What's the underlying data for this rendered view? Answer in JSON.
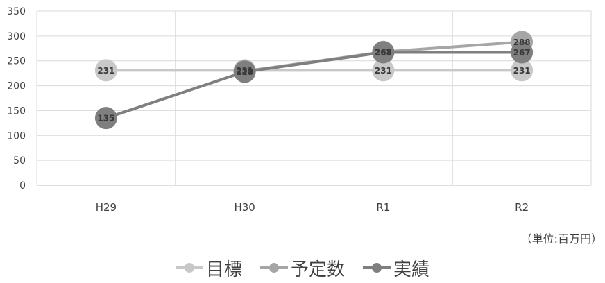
{
  "chart_data": {
    "type": "line",
    "categories": [
      "H29",
      "H30",
      "R1",
      "R2"
    ],
    "ylim": [
      0,
      350
    ],
    "yticks": [
      0,
      50,
      100,
      150,
      200,
      250,
      300,
      350
    ],
    "grid": true,
    "legend_placement": "bottom",
    "unit_note": "（単位:百万円）",
    "series": [
      {
        "name": "目標",
        "values": [
          231,
          231,
          231,
          231
        ],
        "color": "#c8c8c8",
        "labels": [
          "231",
          "231",
          "231",
          "231"
        ]
      },
      {
        "name": "予定数",
        "values": [
          null,
          229,
          268,
          288
        ],
        "color": "#a6a6a6",
        "labels": [
          "",
          "229",
          "268",
          "288"
        ]
      },
      {
        "name": "実績",
        "values": [
          135,
          228,
          267,
          267
        ],
        "color": "#7f7f7f",
        "labels": [
          "135",
          "228",
          "267",
          "267"
        ]
      }
    ]
  }
}
